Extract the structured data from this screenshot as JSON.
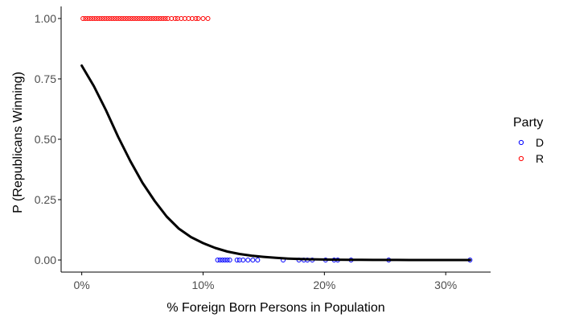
{
  "chart_data": {
    "type": "scatter",
    "title": "",
    "xlabel": "% Foreign Born Persons in Population",
    "ylabel": "P (Republicans Winning)",
    "xlim": [
      -0.017,
      0.337
    ],
    "ylim": [
      -0.05,
      1.05
    ],
    "x_ticks": [
      {
        "value": 0.0,
        "label": "0%"
      },
      {
        "value": 0.1,
        "label": "10%"
      },
      {
        "value": 0.2,
        "label": "20%"
      },
      {
        "value": 0.3,
        "label": "30%"
      }
    ],
    "y_ticks": [
      {
        "value": 0.0,
        "label": "0.00"
      },
      {
        "value": 0.25,
        "label": "0.25"
      },
      {
        "value": 0.5,
        "label": "0.50"
      },
      {
        "value": 0.75,
        "label": "0.75"
      },
      {
        "value": 1.0,
        "label": "1.00"
      }
    ],
    "grid": false,
    "legend": {
      "title": "Party",
      "placement": "right",
      "entries": [
        {
          "label": "D",
          "color": "#0000ff"
        },
        {
          "label": "R",
          "color": "#ff0000"
        }
      ]
    },
    "series": [
      {
        "name": "R",
        "color": "#ff0000",
        "marker": "open-circle",
        "y": 1.0,
        "x": [
          0.001,
          0.003,
          0.005,
          0.007,
          0.009,
          0.011,
          0.013,
          0.015,
          0.017,
          0.019,
          0.021,
          0.023,
          0.025,
          0.027,
          0.029,
          0.031,
          0.033,
          0.035,
          0.037,
          0.039,
          0.041,
          0.043,
          0.045,
          0.047,
          0.049,
          0.051,
          0.053,
          0.055,
          0.057,
          0.059,
          0.061,
          0.063,
          0.065,
          0.067,
          0.069,
          0.071,
          0.074,
          0.077,
          0.079,
          0.082,
          0.085,
          0.088,
          0.091,
          0.094,
          0.096,
          0.1,
          0.104
        ]
      },
      {
        "name": "D",
        "color": "#0000ff",
        "marker": "open-circle",
        "y": 0.0,
        "x": [
          0.112,
          0.114,
          0.116,
          0.118,
          0.12,
          0.122,
          0.128,
          0.13,
          0.133,
          0.137,
          0.141,
          0.145,
          0.166,
          0.179,
          0.183,
          0.186,
          0.19,
          0.201,
          0.208,
          0.211,
          0.222,
          0.253,
          0.32
        ]
      },
      {
        "name": "fit",
        "type": "line",
        "color": "#000000",
        "x": [
          0.0,
          0.01,
          0.02,
          0.03,
          0.04,
          0.05,
          0.06,
          0.07,
          0.08,
          0.09,
          0.1,
          0.11,
          0.12,
          0.13,
          0.14,
          0.15,
          0.16,
          0.17,
          0.18,
          0.19,
          0.2,
          0.21,
          0.22,
          0.23,
          0.24,
          0.25,
          0.26,
          0.27,
          0.28,
          0.29,
          0.3,
          0.31,
          0.32
        ],
        "y": [
          0.805,
          0.72,
          0.62,
          0.51,
          0.41,
          0.32,
          0.245,
          0.18,
          0.13,
          0.095,
          0.07,
          0.05,
          0.035,
          0.025,
          0.018,
          0.013,
          0.009,
          0.006,
          0.004,
          0.003,
          0.002,
          0.0015,
          0.001,
          0.0007,
          0.0005,
          0.0003,
          0.0002,
          0.0001,
          0.0001,
          0.0,
          0.0,
          0.0,
          0.0
        ]
      }
    ]
  }
}
